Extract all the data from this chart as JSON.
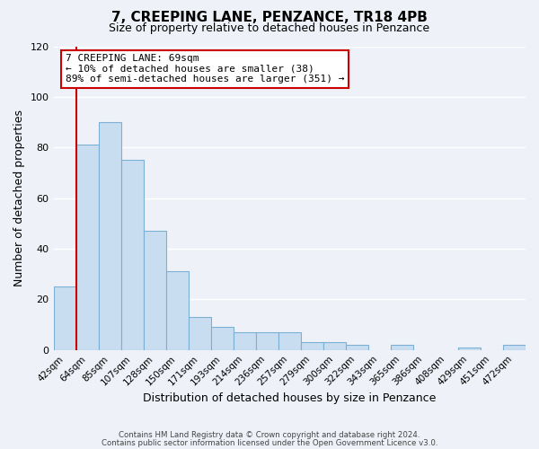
{
  "title": "7, CREEPING LANE, PENZANCE, TR18 4PB",
  "subtitle": "Size of property relative to detached houses in Penzance",
  "xlabel": "Distribution of detached houses by size in Penzance",
  "ylabel": "Number of detached properties",
  "bar_labels": [
    "42sqm",
    "64sqm",
    "85sqm",
    "107sqm",
    "128sqm",
    "150sqm",
    "171sqm",
    "193sqm",
    "214sqm",
    "236sqm",
    "257sqm",
    "279sqm",
    "300sqm",
    "322sqm",
    "343sqm",
    "365sqm",
    "386sqm",
    "408sqm",
    "429sqm",
    "451sqm",
    "472sqm"
  ],
  "bar_heights": [
    25,
    81,
    90,
    75,
    47,
    31,
    13,
    9,
    7,
    7,
    7,
    3,
    3,
    2,
    0,
    2,
    0,
    0,
    1,
    0,
    2
  ],
  "bar_color": "#c9ddf0",
  "bar_edge_color": "#7bafd4",
  "red_line_x": 0.5,
  "annotation_line1": "7 CREEPING LANE: 69sqm",
  "annotation_line2": "← 10% of detached houses are smaller (38)",
  "annotation_line3": "89% of semi-detached houses are larger (351) →",
  "annotation_box_color": "#ffffff",
  "annotation_box_edge": "#cc0000",
  "red_line_color": "#cc0000",
  "ylim": [
    0,
    120
  ],
  "yticks": [
    0,
    20,
    40,
    60,
    80,
    100,
    120
  ],
  "footer_line1": "Contains HM Land Registry data © Crown copyright and database right 2024.",
  "footer_line2": "Contains public sector information licensed under the Open Government Licence v3.0.",
  "background_color": "#eef2f8",
  "grid_color": "#ffffff",
  "title_fontsize": 11,
  "subtitle_fontsize": 9,
  "tick_fontsize": 7.5,
  "ylabel_fontsize": 9,
  "xlabel_fontsize": 9
}
